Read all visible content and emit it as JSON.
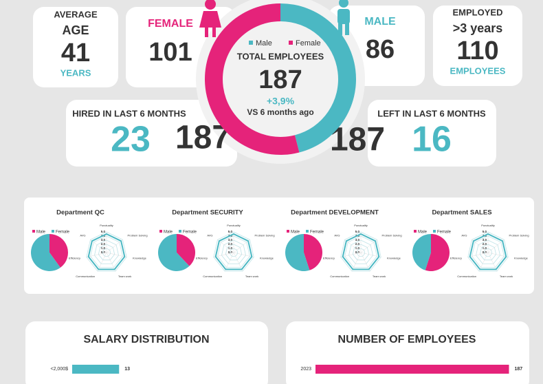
{
  "age_card": {
    "title1": "AVERAGE",
    "title2": "AGE",
    "value": 41,
    "unit": "YEARS"
  },
  "female_card": {
    "label": "FEMALE",
    "value": 101
  },
  "male_card": {
    "label": "MALE",
    "value": 86
  },
  "employed_card": {
    "label": "EMPLOYED",
    "sublabel": ">3 years",
    "value": 110,
    "unit": "EMPLOYEES"
  },
  "hired_card": {
    "label": "HIRED IN LAST 6 MONTHS",
    "value": 23,
    "total": 187
  },
  "left_card": {
    "label": "LEFT IN LAST 6 MONTHS",
    "total": 187,
    "value": 16
  },
  "chart_data": [
    {
      "type": "donut",
      "title": "TOTAL EMPLOYEES",
      "total": 187,
      "change": "+3,9%",
      "change_label": "VS 6 months ago",
      "categories": [
        "Male",
        "Female"
      ],
      "values": [
        86,
        101
      ],
      "colors": [
        "#4bb8c3",
        "#e5237a"
      ]
    },
    {
      "type": "department",
      "title": "Department QC",
      "pie": {
        "categories": [
          "Male",
          "Female"
        ],
        "values": [
          40,
          60
        ],
        "colors": [
          "#e5237a",
          "#4bb8c3"
        ]
      },
      "radar": {
        "axes": [
          "Punctuality",
          "Problem Solving",
          "Knowledge",
          "Team work",
          "Communication",
          "Efficiency",
          "AVG"
        ],
        "ylim": [
          0,
          5
        ],
        "yticks": [
          {
            "value": 5,
            "label": "5.0"
          },
          {
            "value": 4,
            "label": "4.0"
          },
          {
            "value": 3,
            "label": "3.0"
          },
          {
            "value": 2,
            "label": "2.0"
          },
          {
            "value": 1,
            "label": "1.0"
          },
          {
            "value": 0,
            "label": "0.0"
          }
        ],
        "values": [
          4.5,
          4.5,
          4.5,
          4.5,
          4.5,
          4.5,
          4.5
        ],
        "color": "#4bb8c3"
      }
    },
    {
      "type": "department",
      "title": "Department SECURITY",
      "pie": {
        "categories": [
          "Male",
          "Female"
        ],
        "values": [
          38,
          62
        ],
        "colors": [
          "#e5237a",
          "#4bb8c3"
        ]
      },
      "radar": {
        "axes": [
          "Punctuality",
          "Problem Solving",
          "Knowledge",
          "Team work",
          "Communication",
          "Efficiency",
          "AVG"
        ],
        "ylim": [
          0,
          5
        ],
        "yticks": [
          {
            "value": 5,
            "label": "5.0"
          },
          {
            "value": 4,
            "label": "4.0"
          },
          {
            "value": 3,
            "label": "3.0"
          },
          {
            "value": 2,
            "label": "2.0"
          },
          {
            "value": 1,
            "label": "1.0"
          },
          {
            "value": 0,
            "label": "0.0"
          }
        ],
        "values": [
          4.5,
          4.5,
          4.5,
          4.5,
          4.5,
          4.5,
          4.5
        ],
        "color": "#4bb8c3"
      }
    },
    {
      "type": "department",
      "title": "Department DEVELOPMENT",
      "pie": {
        "categories": [
          "Male",
          "Female"
        ],
        "values": [
          45,
          55
        ],
        "colors": [
          "#e5237a",
          "#4bb8c3"
        ]
      },
      "radar": {
        "axes": [
          "Punctuality",
          "Problem Solving",
          "Knowledge",
          "Team work",
          "Communication",
          "Efficiency",
          "AVG"
        ],
        "ylim": [
          0,
          5
        ],
        "yticks": [
          {
            "value": 5,
            "label": "5.0"
          },
          {
            "value": 4,
            "label": "4.0"
          },
          {
            "value": 3,
            "label": "3.0"
          },
          {
            "value": 2,
            "label": "2.0"
          },
          {
            "value": 1,
            "label": "1.0"
          },
          {
            "value": 0,
            "label": "0.0"
          }
        ],
        "values": [
          4.5,
          4.5,
          4.5,
          4.5,
          4.5,
          4.5,
          4.5
        ],
        "color": "#4bb8c3"
      }
    },
    {
      "type": "department",
      "title": "Department SALES",
      "pie": {
        "categories": [
          "Male",
          "Female"
        ],
        "values": [
          55,
          45
        ],
        "colors": [
          "#e5237a",
          "#4bb8c3"
        ]
      },
      "radar": {
        "axes": [
          "Punctuality",
          "Problem Solving",
          "Knowledge",
          "Team work",
          "Communication",
          "Efficiency",
          "AVG"
        ],
        "ylim": [
          0,
          5
        ],
        "yticks": [
          {
            "value": 5,
            "label": "5.0"
          },
          {
            "value": 4,
            "label": "4.0"
          },
          {
            "value": 3,
            "label": "3.0"
          },
          {
            "value": 2,
            "label": "2.0"
          },
          {
            "value": 1,
            "label": "1.0"
          },
          {
            "value": 0,
            "label": "0.0"
          }
        ],
        "values": [
          4.5,
          4.5,
          4.5,
          4.5,
          4.5,
          4.5,
          4.5
        ],
        "color": "#4bb8c3"
      }
    },
    {
      "type": "hbar",
      "title": "SALARY DISTRIBUTION",
      "categories": [
        "<2,000$"
      ],
      "values": [
        13
      ],
      "color": "#4bb8c3",
      "xlim": [
        0,
        40
      ]
    },
    {
      "type": "hbar",
      "title": "NUMBER OF EMPLOYEES",
      "categories": [
        "2023"
      ],
      "values": [
        187
      ],
      "color": "#e5237a",
      "xlim": [
        0,
        190
      ]
    }
  ]
}
